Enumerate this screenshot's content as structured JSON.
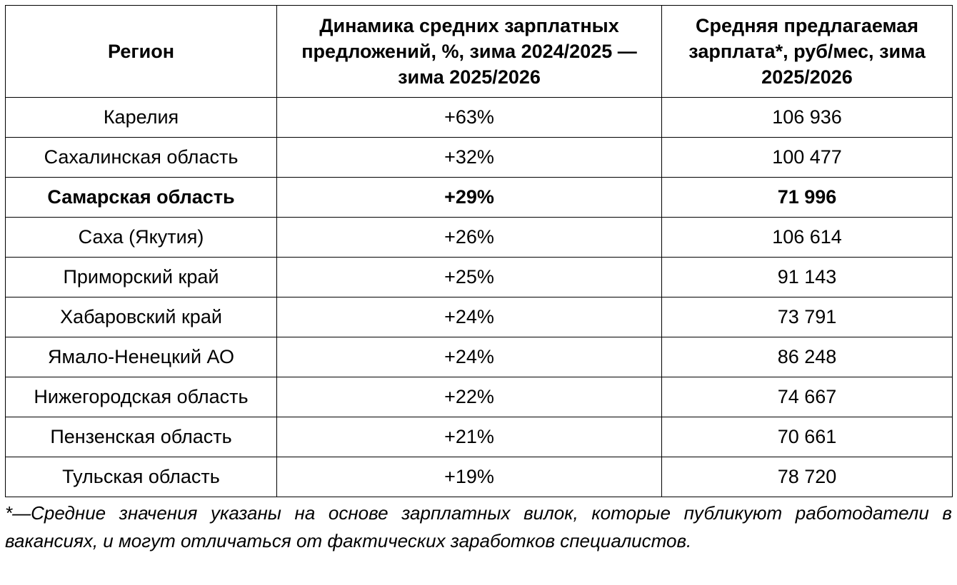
{
  "table": {
    "headers": [
      "Регион",
      "Динамика средних зарплатных предложений, %, зима 2024/2025 — зима 2025/2026",
      "Средняя предлагаемая зарплата*, руб/мес, зима 2025/2026"
    ],
    "rows": [
      {
        "region": "Карелия",
        "change": "+63%",
        "salary": "106 936",
        "bold": false
      },
      {
        "region": "Сахалинская область",
        "change": "+32%",
        "salary": "100 477",
        "bold": false
      },
      {
        "region": "Самарская область",
        "change": "+29%",
        "salary": "71 996",
        "bold": true
      },
      {
        "region": "Саха (Якутия)",
        "change": "+26%",
        "salary": "106 614",
        "bold": false
      },
      {
        "region": "Приморский край",
        "change": "+25%",
        "salary": "91 143",
        "bold": false
      },
      {
        "region": "Хабаровский край",
        "change": "+24%",
        "salary": "73 791",
        "bold": false
      },
      {
        "region": "Ямало-Ненецкий АО",
        "change": "+24%",
        "salary": "86 248",
        "bold": false
      },
      {
        "region": "Нижегородская область",
        "change": "+22%",
        "salary": "74 667",
        "bold": false
      },
      {
        "region": "Пензенская область",
        "change": "+21%",
        "salary": "70 661",
        "bold": false
      },
      {
        "region": "Тульская область",
        "change": "+19%",
        "salary": "78 720",
        "bold": false
      }
    ]
  },
  "footnote": "*—Средние значения указаны на основе зарплатных вилок, которые публикуют работодатели в вакансиях, и могут отличаться от фактических заработков специалистов."
}
